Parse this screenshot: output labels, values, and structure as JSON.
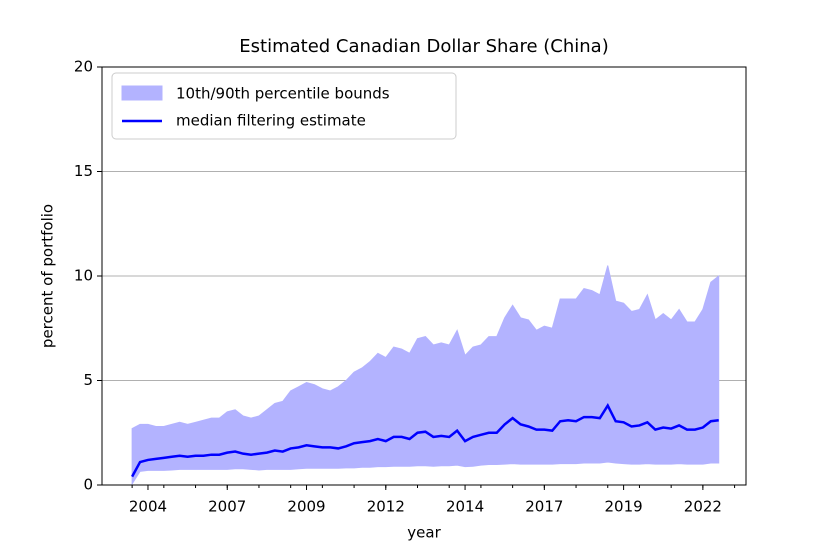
{
  "chart_data": {
    "type": "band-line",
    "title": "Estimated Canadian Dollar Share (China)",
    "xlabel": "year",
    "ylabel": "percent of portfolio",
    "x": [
      2004,
      2004.25,
      2004.5,
      2004.75,
      2005,
      2005.25,
      2005.5,
      2005.75,
      2006,
      2006.25,
      2006.5,
      2006.75,
      2007,
      2007.25,
      2007.5,
      2007.75,
      2008,
      2008.25,
      2008.5,
      2008.75,
      2009,
      2009.25,
      2009.5,
      2009.75,
      2010,
      2010.25,
      2010.5,
      2010.75,
      2011,
      2011.25,
      2011.5,
      2011.75,
      2012,
      2012.25,
      2012.5,
      2012.75,
      2013,
      2013.25,
      2013.5,
      2013.75,
      2014,
      2014.25,
      2014.5,
      2014.75,
      2015,
      2015.25,
      2015.5,
      2015.75,
      2016,
      2016.25,
      2016.5,
      2016.75,
      2017,
      2017.25,
      2017.5,
      2017.75,
      2018,
      2018.25,
      2018.5,
      2018.75,
      2019,
      2019.25,
      2019.5,
      2019.75,
      2020,
      2020.25,
      2020.5,
      2020.75,
      2021,
      2021.25,
      2021.5,
      2021.75,
      2022,
      2022.25,
      2022.5
    ],
    "series": [
      {
        "name": "10th/90th percentile bounds",
        "color": "#b3b3ff",
        "upper": [
          2.7,
          2.9,
          2.9,
          2.8,
          2.8,
          2.9,
          3.0,
          2.9,
          3.0,
          3.1,
          3.2,
          3.2,
          3.5,
          3.6,
          3.3,
          3.2,
          3.3,
          3.6,
          3.9,
          4.0,
          4.5,
          4.7,
          4.9,
          4.8,
          4.6,
          4.5,
          4.7,
          5.0,
          5.4,
          5.6,
          5.9,
          6.3,
          6.1,
          6.6,
          6.5,
          6.3,
          7.0,
          7.1,
          6.7,
          6.8,
          6.7,
          7.4,
          6.2,
          6.6,
          6.7,
          7.1,
          7.1,
          8.0,
          8.6,
          8.0,
          7.9,
          7.4,
          7.6,
          7.5,
          8.9,
          8.9,
          8.9,
          9.4,
          9.3,
          9.1,
          10.5,
          8.8,
          8.7,
          8.3,
          8.4,
          9.1,
          7.9,
          8.2,
          7.9,
          8.4,
          7.8,
          7.8,
          8.4,
          9.7,
          10.0
        ],
        "lower": [
          0.05,
          0.65,
          0.7,
          0.7,
          0.7,
          0.72,
          0.75,
          0.75,
          0.75,
          0.75,
          0.75,
          0.75,
          0.75,
          0.78,
          0.78,
          0.75,
          0.72,
          0.75,
          0.75,
          0.75,
          0.75,
          0.78,
          0.8,
          0.8,
          0.8,
          0.8,
          0.8,
          0.82,
          0.82,
          0.85,
          0.85,
          0.88,
          0.88,
          0.9,
          0.9,
          0.9,
          0.92,
          0.92,
          0.9,
          0.92,
          0.92,
          0.95,
          0.88,
          0.9,
          0.95,
          0.98,
          0.98,
          1.0,
          1.02,
          1.0,
          1.0,
          1.0,
          1.0,
          1.0,
          1.02,
          1.02,
          1.02,
          1.05,
          1.05,
          1.05,
          1.1,
          1.05,
          1.02,
          1.0,
          1.0,
          1.02,
          1.0,
          1.0,
          1.0,
          1.02,
          1.0,
          1.0,
          1.0,
          1.05,
          1.05
        ]
      },
      {
        "name": "median filtering estimate",
        "color": "#0000ff",
        "values": [
          0.4,
          1.1,
          1.2,
          1.25,
          1.3,
          1.35,
          1.4,
          1.35,
          1.4,
          1.4,
          1.45,
          1.45,
          1.55,
          1.6,
          1.5,
          1.45,
          1.5,
          1.55,
          1.65,
          1.6,
          1.75,
          1.8,
          1.9,
          1.85,
          1.8,
          1.8,
          1.75,
          1.85,
          2.0,
          2.05,
          2.1,
          2.2,
          2.1,
          2.3,
          2.3,
          2.2,
          2.5,
          2.55,
          2.3,
          2.35,
          2.3,
          2.6,
          2.1,
          2.3,
          2.4,
          2.5,
          2.5,
          2.9,
          3.2,
          2.9,
          2.8,
          2.65,
          2.65,
          2.6,
          3.05,
          3.1,
          3.05,
          3.25,
          3.25,
          3.2,
          3.8,
          3.05,
          3.0,
          2.8,
          2.85,
          3.0,
          2.65,
          2.75,
          2.7,
          2.85,
          2.65,
          2.65,
          2.75,
          3.05,
          3.1
        ]
      }
    ],
    "xlim": [
      2003.05,
      2023.36
    ],
    "xticks": [
      {
        "value": 2004.5,
        "label": "2004"
      },
      {
        "value": 2007,
        "label": "2007"
      },
      {
        "value": 2009.5,
        "label": "2009"
      },
      {
        "value": 2012,
        "label": "2012"
      },
      {
        "value": 2014.5,
        "label": "2014"
      },
      {
        "value": 2017,
        "label": "2017"
      },
      {
        "value": 2019.5,
        "label": "2019"
      },
      {
        "value": 2022,
        "label": "2022"
      }
    ],
    "xminorticks": [
      2004,
      2005,
      2006,
      2007,
      2008,
      2009,
      2010,
      2011,
      2012,
      2013,
      2014,
      2015,
      2016,
      2017,
      2018,
      2019,
      2020,
      2021,
      2022,
      2023
    ],
    "ylim": [
      0,
      20
    ],
    "yticks": [
      0,
      5,
      10,
      15,
      20
    ],
    "grid": true,
    "legend": "upper left"
  }
}
